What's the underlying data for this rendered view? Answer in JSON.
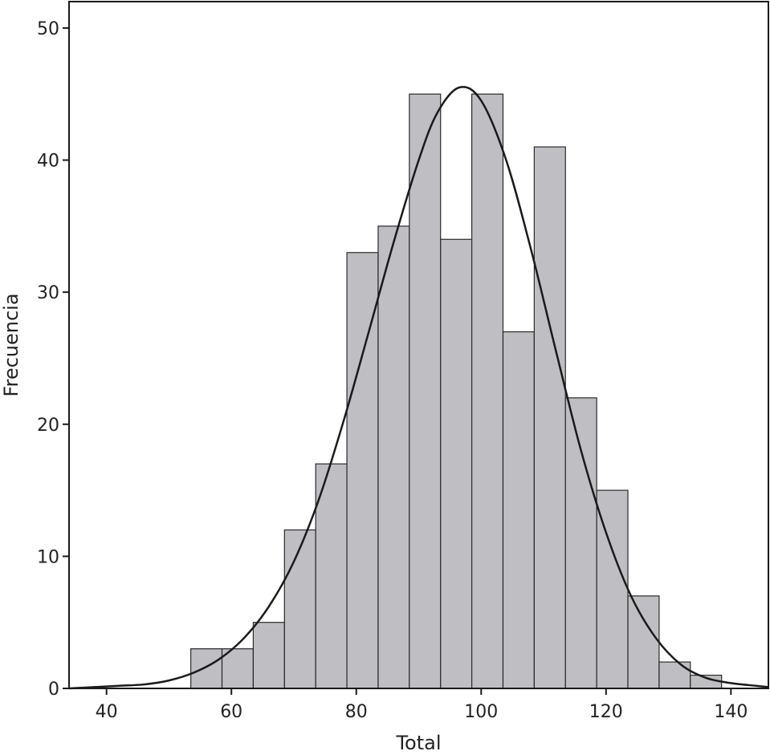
{
  "chart_data": {
    "type": "bar",
    "xlabel": "Total",
    "ylabel": "Frecuencia",
    "xlim": [
      34,
      146
    ],
    "ylim": [
      0,
      52
    ],
    "xticks": [
      40,
      60,
      80,
      100,
      120,
      140
    ],
    "yticks": [
      0,
      10,
      20,
      30,
      40,
      50
    ],
    "bin_width": 5,
    "bins": [
      {
        "start": 53.5,
        "end": 58.5,
        "count": 3
      },
      {
        "start": 58.5,
        "end": 63.5,
        "count": 3
      },
      {
        "start": 63.5,
        "end": 68.5,
        "count": 5
      },
      {
        "start": 68.5,
        "end": 73.5,
        "count": 12
      },
      {
        "start": 73.5,
        "end": 78.5,
        "count": 17
      },
      {
        "start": 78.5,
        "end": 83.5,
        "count": 33
      },
      {
        "start": 83.5,
        "end": 88.5,
        "count": 35
      },
      {
        "start": 88.5,
        "end": 93.5,
        "count": 45
      },
      {
        "start": 93.5,
        "end": 98.5,
        "count": 34
      },
      {
        "start": 98.5,
        "end": 103.5,
        "count": 45
      },
      {
        "start": 103.5,
        "end": 108.5,
        "count": 27
      },
      {
        "start": 108.5,
        "end": 113.5,
        "count": 41
      },
      {
        "start": 113.5,
        "end": 118.5,
        "count": 22
      },
      {
        "start": 118.5,
        "end": 123.5,
        "count": 15
      },
      {
        "start": 123.5,
        "end": 128.5,
        "count": 7
      },
      {
        "start": 128.5,
        "end": 133.5,
        "count": 2
      },
      {
        "start": 133.5,
        "end": 138.5,
        "count": 1
      }
    ],
    "density_curve": [
      [
        34,
        0.0
      ],
      [
        38,
        0.1
      ],
      [
        42,
        0.2
      ],
      [
        46,
        0.3
      ],
      [
        50,
        0.6
      ],
      [
        54,
        1.2
      ],
      [
        58,
        2.2
      ],
      [
        62,
        3.8
      ],
      [
        66,
        6.2
      ],
      [
        70,
        9.6
      ],
      [
        74,
        14.3
      ],
      [
        78,
        20.3
      ],
      [
        82,
        27.0
      ],
      [
        86,
        33.8
      ],
      [
        90,
        40.0
      ],
      [
        93,
        43.6
      ],
      [
        96.5,
        45.5
      ],
      [
        100,
        44.5
      ],
      [
        104,
        40.0
      ],
      [
        108,
        33.2
      ],
      [
        112,
        25.5
      ],
      [
        116,
        18.0
      ],
      [
        120,
        11.8
      ],
      [
        124,
        7.0
      ],
      [
        128,
        3.8
      ],
      [
        132,
        1.8
      ],
      [
        136,
        0.8
      ],
      [
        140,
        0.4
      ],
      [
        144,
        0.2
      ],
      [
        146,
        0.1
      ]
    ],
    "grid": false,
    "legend": "none",
    "bar_color": "#bfbfc3",
    "line_color": "#1a1a1a"
  }
}
